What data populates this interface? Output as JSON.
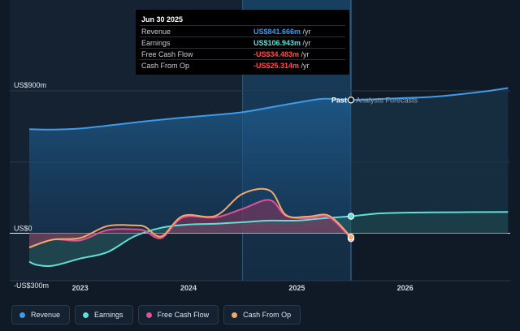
{
  "chart_data": {
    "type": "line",
    "currency_unit": "US$",
    "y_ticks": [
      {
        "value": 900,
        "label": "US$900m"
      },
      {
        "value": 0,
        "label": "US$0"
      },
      {
        "value": -300,
        "label": "-US$300m"
      }
    ],
    "x_ticks": [
      {
        "value": 2023.0,
        "label": "2023"
      },
      {
        "value": 2024.0,
        "label": "2024"
      },
      {
        "value": 2025.0,
        "label": "2025"
      },
      {
        "value": 2026.0,
        "label": "2026"
      }
    ],
    "xlim": [
      2022.35,
      2026.97
    ],
    "ylim": [
      -300,
      900
    ],
    "past_label": "Past",
    "forecast_label": "Analysts Forecasts",
    "past_end": 2025.5,
    "highlight_start": 2024.5,
    "series": [
      {
        "name": "Revenue",
        "color": "#3d9be9",
        "fill": true,
        "points": [
          [
            2022.53,
            658
          ],
          [
            2022.75,
            655
          ],
          [
            2023.0,
            662
          ],
          [
            2023.25,
            680
          ],
          [
            2023.5,
            700
          ],
          [
            2023.75,
            718
          ],
          [
            2024.0,
            734
          ],
          [
            2024.25,
            748
          ],
          [
            2024.5,
            765
          ],
          [
            2024.75,
            795
          ],
          [
            2025.0,
            825
          ],
          [
            2025.25,
            850
          ],
          [
            2025.5,
            842
          ]
        ],
        "forecast_points": [
          [
            2025.5,
            842
          ],
          [
            2025.75,
            848
          ],
          [
            2026.0,
            855
          ],
          [
            2026.25,
            862
          ],
          [
            2026.5,
            878
          ],
          [
            2026.75,
            898
          ],
          [
            2026.95,
            918
          ]
        ]
      },
      {
        "name": "Earnings",
        "color": "#5ee0d6",
        "fill": true,
        "points": [
          [
            2022.53,
            -180
          ],
          [
            2022.6,
            -200
          ],
          [
            2022.75,
            -205
          ],
          [
            2023.0,
            -160
          ],
          [
            2023.25,
            -120
          ],
          [
            2023.5,
            -20
          ],
          [
            2023.75,
            35
          ],
          [
            2024.0,
            55
          ],
          [
            2024.25,
            60
          ],
          [
            2024.5,
            70
          ],
          [
            2024.75,
            80
          ],
          [
            2025.0,
            80
          ],
          [
            2025.25,
            95
          ],
          [
            2025.5,
            107
          ]
        ],
        "forecast_points": [
          [
            2025.5,
            107
          ],
          [
            2025.75,
            125
          ],
          [
            2026.0,
            130
          ],
          [
            2026.25,
            132
          ],
          [
            2026.5,
            133
          ],
          [
            2026.75,
            134
          ],
          [
            2026.95,
            135
          ]
        ]
      },
      {
        "name": "Free Cash Flow",
        "color": "#e05296",
        "fill": true,
        "points": [
          [
            2022.53,
            -90
          ],
          [
            2022.75,
            -40
          ],
          [
            2023.0,
            -45
          ],
          [
            2023.25,
            20
          ],
          [
            2023.5,
            25
          ],
          [
            2023.6,
            15
          ],
          [
            2023.75,
            -30
          ],
          [
            2023.95,
            100
          ],
          [
            2024.25,
            100
          ],
          [
            2024.5,
            155
          ],
          [
            2024.75,
            210
          ],
          [
            2024.9,
            110
          ],
          [
            2025.1,
            95
          ],
          [
            2025.3,
            100
          ],
          [
            2025.5,
            -34
          ]
        ]
      },
      {
        "name": "Cash From Op",
        "color": "#f2a96a",
        "fill": false,
        "points": [
          [
            2022.53,
            -90
          ],
          [
            2022.75,
            -40
          ],
          [
            2023.0,
            -30
          ],
          [
            2023.25,
            45
          ],
          [
            2023.5,
            50
          ],
          [
            2023.6,
            40
          ],
          [
            2023.75,
            -20
          ],
          [
            2023.95,
            110
          ],
          [
            2024.25,
            110
          ],
          [
            2024.5,
            250
          ],
          [
            2024.75,
            270
          ],
          [
            2024.9,
            115
          ],
          [
            2025.1,
            105
          ],
          [
            2025.3,
            110
          ],
          [
            2025.5,
            -25
          ]
        ]
      }
    ],
    "tooltip": {
      "date": "Jun 30 2025",
      "rows": [
        {
          "name": "Revenue",
          "value": "US$841.666m",
          "unit": "/yr",
          "color": "#3d9be9"
        },
        {
          "name": "Earnings",
          "value": "US$106.943m",
          "unit": "/yr",
          "color": "#5ee0d6"
        },
        {
          "name": "Free Cash Flow",
          "value": "-US$34.483m",
          "unit": "/yr",
          "color": "#ff4b4b"
        },
        {
          "name": "Cash From Op",
          "value": "-US$25.314m",
          "unit": "/yr",
          "color": "#ff4b4b"
        }
      ]
    }
  },
  "legend": [
    {
      "label": "Revenue",
      "color": "#3d9be9"
    },
    {
      "label": "Earnings",
      "color": "#5ee0d6"
    },
    {
      "label": "Free Cash Flow",
      "color": "#e05296"
    },
    {
      "label": "Cash From Op",
      "color": "#f2a96a"
    }
  ]
}
